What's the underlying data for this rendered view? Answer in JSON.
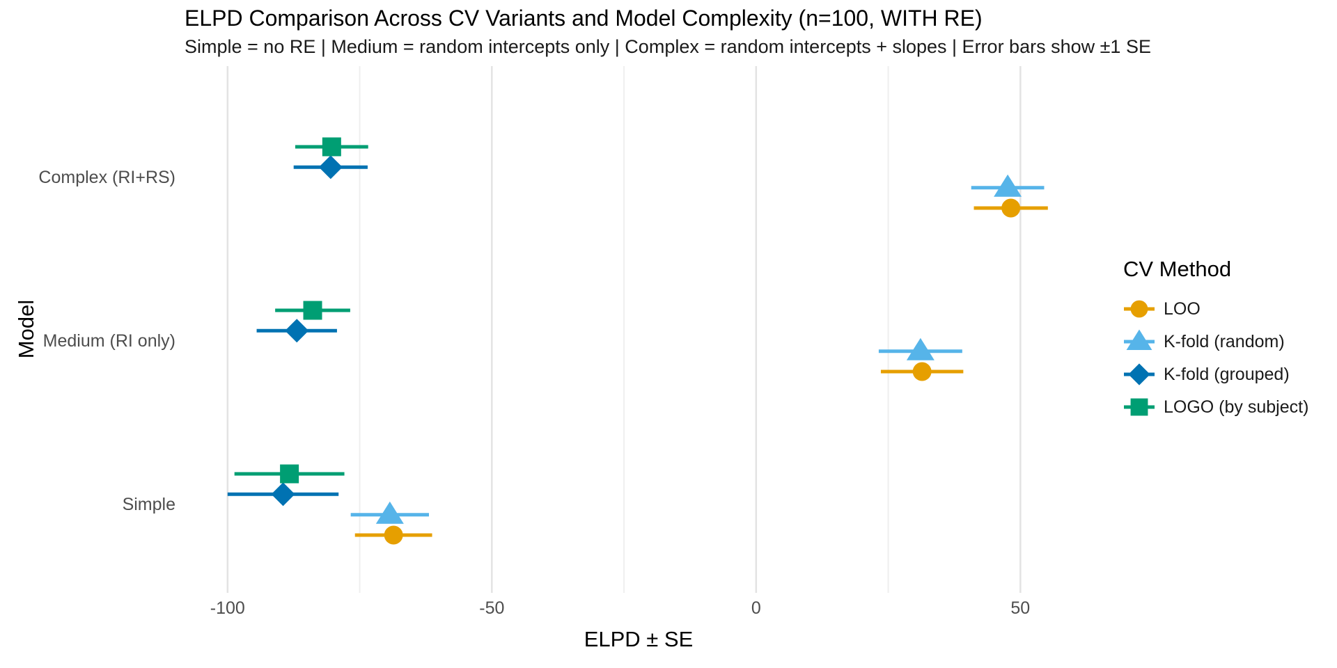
{
  "chart_data": {
    "type": "scatter",
    "variant": "horizontal dot plot with error bars (forest plot), dodged by CV method",
    "title": "ELPD Comparison Across CV Variants and Model Complexity (n=100, WITH RE)",
    "subtitle": "Simple = no RE | Medium = random intercepts only | Complex = random intercepts + slopes | Error bars show ±1 SE",
    "xlabel": "ELPD ± SE",
    "ylabel": "Model",
    "legend_title": "CV Method",
    "legend_position": "right",
    "error_bars": "±1 SE, horizontal, no caps",
    "grid": "vertical gridlines only, light gray",
    "x_ticks": [
      -100,
      -50,
      0,
      50
    ],
    "x_minor_gridlines": [
      -75,
      -25,
      25
    ],
    "xlim": [
      -107.75,
      59.85
    ],
    "categories": [
      "Complex (RI+RS)",
      "Medium (RI only)",
      "Simple"
    ],
    "series": [
      {
        "name": "LOO",
        "marker": "circle",
        "color": "#E69F00",
        "elpd": [
          48.2,
          31.4,
          -68.6
        ],
        "se": [
          7.0,
          7.8,
          7.3
        ]
      },
      {
        "name": "K-fold (random)",
        "marker": "triangle",
        "color": "#56B4E9",
        "elpd": [
          47.6,
          31.1,
          -69.3
        ],
        "se": [
          6.9,
          7.9,
          7.4
        ]
      },
      {
        "name": "K-fold (grouped)",
        "marker": "diamond",
        "color": "#0072B2",
        "elpd": [
          -80.5,
          -86.9,
          -89.5
        ],
        "se": [
          7.0,
          7.6,
          10.5
        ]
      },
      {
        "name": "LOGO (by subject)",
        "marker": "square",
        "color": "#009E73",
        "elpd": [
          -80.3,
          -83.9,
          -88.3
        ],
        "se": [
          6.9,
          7.1,
          10.4
        ]
      }
    ],
    "style": {
      "major_grid_color": "#e3e3e3",
      "minor_grid_color": "#efefef",
      "axis_text_color": "#4d4d4d"
    }
  }
}
